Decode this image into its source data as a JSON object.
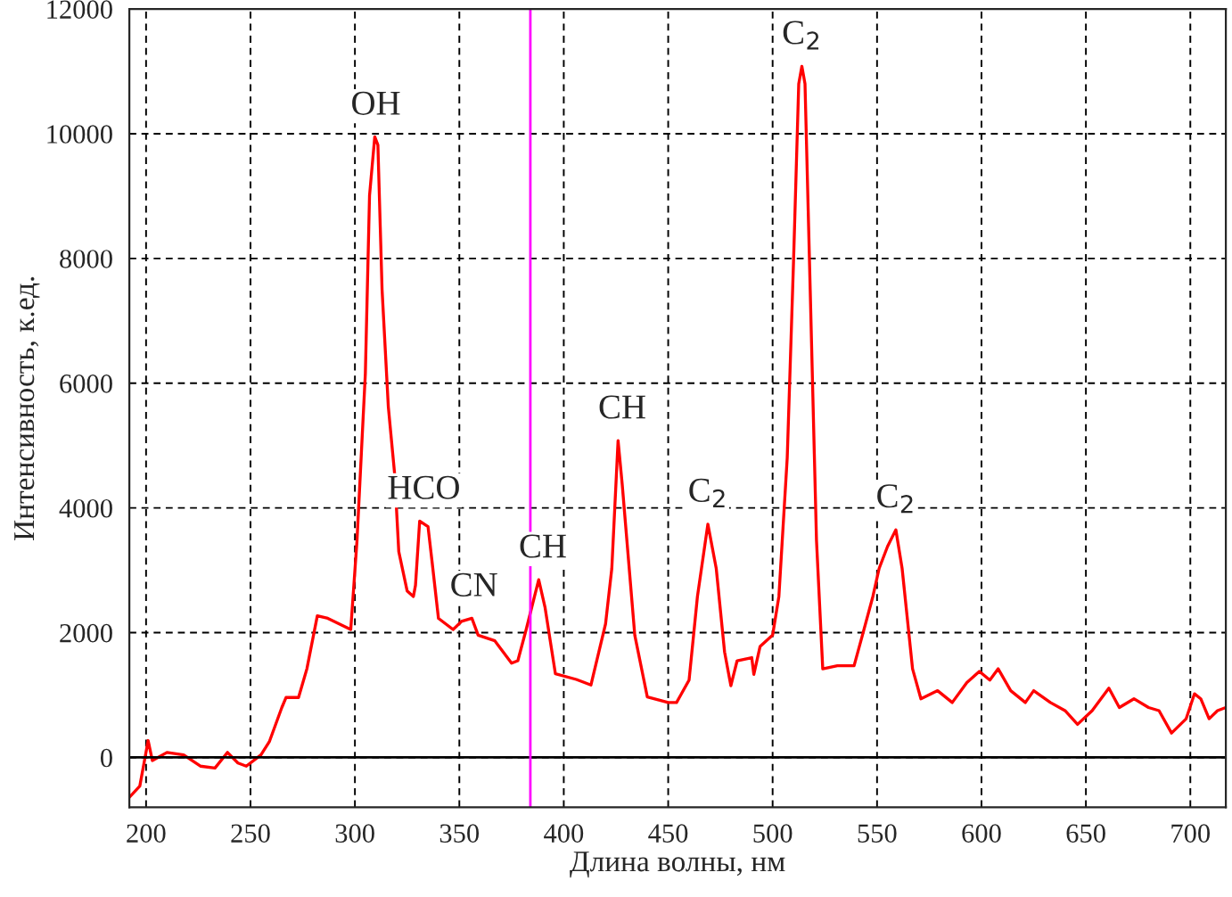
{
  "chart_data": {
    "type": "line",
    "xlabel": "Длина волны, нм",
    "ylabel": "Интенсивность, к.ед.",
    "x": [
      192,
      197,
      201,
      203,
      210,
      218,
      226,
      233,
      239,
      244,
      248,
      255,
      259,
      265,
      267,
      273,
      277,
      282,
      287,
      298,
      301,
      305,
      307,
      309.5,
      311,
      313,
      316,
      319,
      321,
      325,
      328,
      329,
      331,
      335,
      337,
      340,
      347,
      351,
      356,
      359,
      367,
      375,
      378,
      382,
      388,
      391,
      396,
      406,
      413,
      420,
      423,
      426,
      428,
      434,
      440,
      450,
      454,
      460,
      464,
      469,
      473,
      477,
      480,
      483,
      490,
      491,
      494,
      500,
      503,
      507,
      510,
      512.5,
      514,
      515.5,
      518,
      521,
      524,
      531,
      539,
      543,
      548,
      551,
      555,
      559,
      562,
      567,
      571,
      579,
      586,
      593,
      599,
      604,
      608,
      614,
      621,
      625,
      633,
      640,
      646,
      653,
      661,
      666,
      673,
      680,
      685,
      691,
      698,
      702,
      705,
      709,
      713,
      717
    ],
    "series": [
      {
        "color": "#ff0000",
        "values": [
          -640,
          -460,
          270,
          -50,
          80,
          40,
          -140,
          -170,
          80,
          -90,
          -140,
          40,
          250,
          800,
          960,
          960,
          1420,
          2270,
          2230,
          2050,
          3480,
          6160,
          9010,
          9950,
          9820,
          7500,
          5620,
          4550,
          3300,
          2670,
          2580,
          2760,
          3790,
          3700,
          3120,
          2230,
          2050,
          2180,
          2230,
          1960,
          1870,
          1510,
          1550,
          2050,
          2850,
          2410,
          1340,
          1250,
          1160,
          2140,
          3030,
          5080,
          4370,
          1960,
          970,
          880,
          880,
          1240,
          2580,
          3740,
          3030,
          1690,
          1150,
          1550,
          1600,
          1330,
          1780,
          1960,
          2580,
          4810,
          7940,
          10800,
          11080,
          10800,
          7490,
          3480,
          1420,
          1470,
          1470,
          1960,
          2580,
          3030,
          3380,
          3650,
          3030,
          1420,
          940,
          1070,
          880,
          1200,
          1380,
          1240,
          1420,
          1070,
          880,
          1070,
          880,
          750,
          530,
          750,
          1110,
          800,
          940,
          800,
          750,
          390,
          620,
          1020,
          940,
          620,
          750,
          800
        ]
      }
    ],
    "xlim": [
      192,
      717
    ],
    "ylim": [
      -800,
      12000
    ],
    "xticks": [
      200,
      250,
      300,
      350,
      400,
      450,
      500,
      550,
      600,
      650,
      700
    ],
    "yticks": [
      0,
      2000,
      4000,
      6000,
      8000,
      10000,
      12000
    ],
    "grid": true,
    "ref_lines": [
      {
        "axis": "y",
        "value": 0,
        "color": "#000000"
      },
      {
        "axis": "x",
        "value": 384,
        "color": "#ff00ff"
      }
    ],
    "annotations": [
      {
        "text": "OH",
        "x": 310,
        "y": 9950
      },
      {
        "text": "HCO",
        "x": 333,
        "y": 3790
      },
      {
        "text": "CN",
        "x": 357,
        "y": 2230
      },
      {
        "text": "CH",
        "x": 390,
        "y": 2850
      },
      {
        "text": "CH",
        "x": 428,
        "y": 5080
      },
      {
        "text": "C$_{2}$",
        "x": 469,
        "y": 3740
      },
      {
        "text": "C$_{2}$",
        "x": 514,
        "y": 11080
      },
      {
        "text": "C$_{2}$",
        "x": 559,
        "y": 3650
      }
    ]
  }
}
